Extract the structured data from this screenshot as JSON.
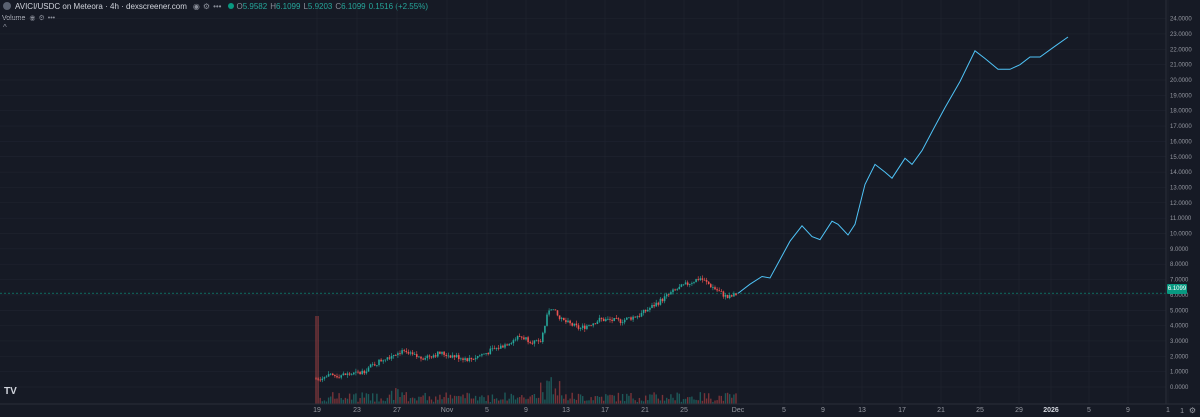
{
  "header": {
    "symbol_title": "AVICI/USDC on Meteora · 4h · dexscreener.com",
    "ohlc": [
      {
        "k": "O",
        "v": "5.9582"
      },
      {
        "k": "H",
        "v": "6.1099"
      },
      {
        "k": "L",
        "v": "5.9203"
      },
      {
        "k": "C",
        "v": "6.1099"
      }
    ],
    "change": "0.1516 (+2.55%)",
    "eye_icon": "eye-icon",
    "settings_icon": "gear-icon",
    "more_icon": "more-icon"
  },
  "volume_legend": {
    "label": "Volume",
    "collapse": "^"
  },
  "price_axis": {
    "labels": [
      "24.0000",
      "23.0000",
      "22.0000",
      "21.0000",
      "20.0000",
      "19.0000",
      "18.0000",
      "17.0000",
      "16.0000",
      "15.0000",
      "14.0000",
      "13.0000",
      "12.0000",
      "11.0000",
      "10.0000",
      "9.0000",
      "8.0000",
      "7.0000",
      "6.0000",
      "5.0000",
      "4.0000",
      "3.0000",
      "2.0000",
      "1.0000",
      "0.0000"
    ],
    "current_price": "6.1099"
  },
  "time_axis": {
    "labels": [
      "19",
      "23",
      "27",
      "Nov",
      "5",
      "9",
      "13",
      "17",
      "21",
      "25",
      "Dec",
      "5",
      "9",
      "13",
      "17",
      "21",
      "25",
      "29",
      "2026",
      "5",
      "9",
      "1"
    ],
    "bold_label": "2026"
  },
  "footer": {
    "logo": "TV",
    "corner_label": "1"
  },
  "colors": {
    "background": "#161a25",
    "grid": "#222632",
    "up": "#26a69a",
    "down": "#ef5350",
    "projection": "#4fc3f7",
    "current_line": "#089981"
  }
}
